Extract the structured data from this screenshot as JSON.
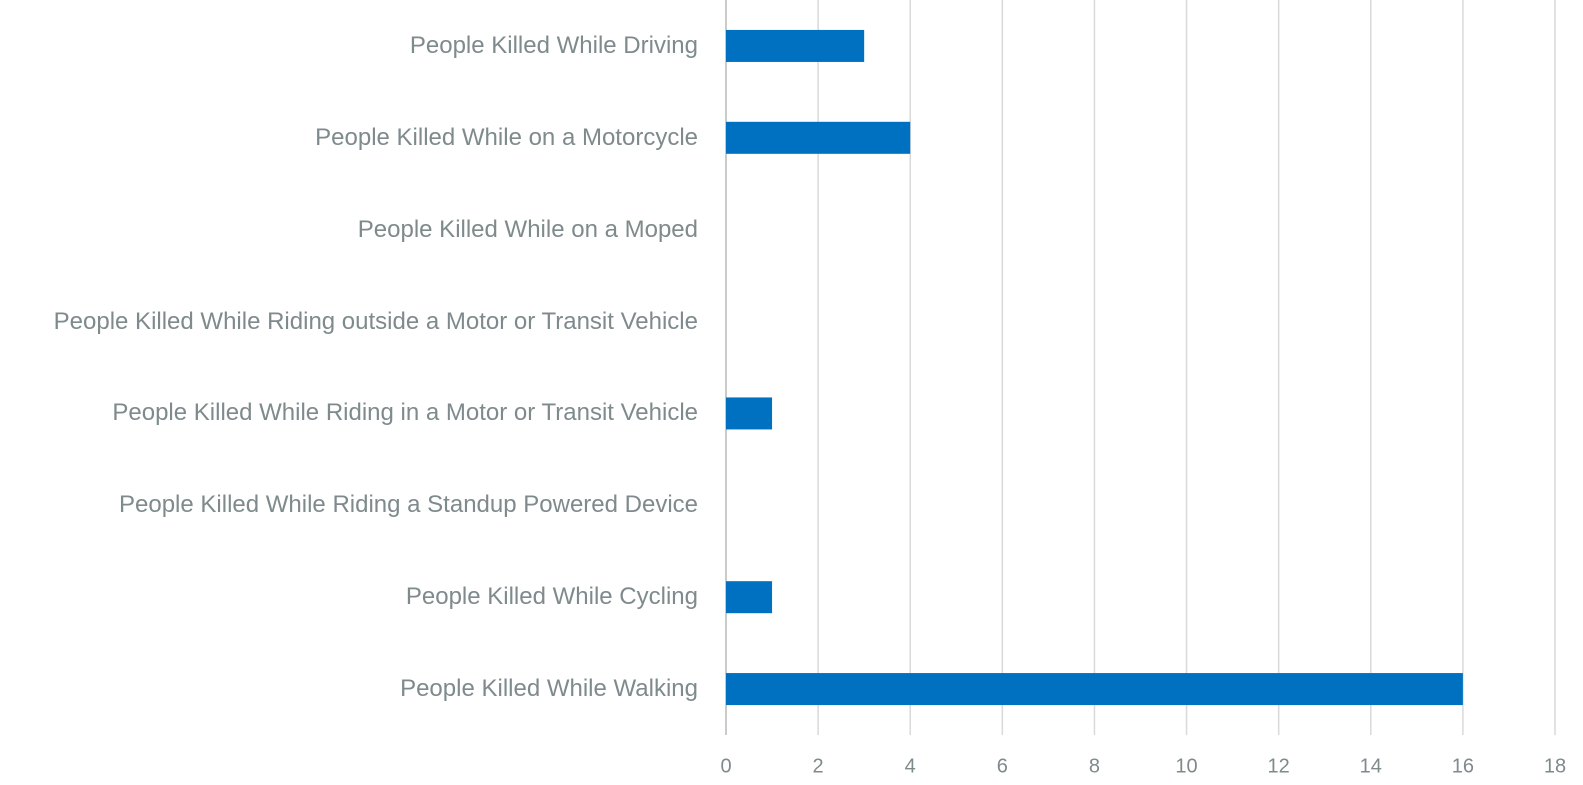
{
  "chart_data": {
    "type": "bar",
    "orientation": "horizontal",
    "categories": [
      "People Killed While Driving",
      "People Killed While on a Motorcycle",
      "People Killed While on a Moped",
      "People Killed While Riding outside a Motor or Transit Vehicle",
      "People Killed While Riding in a Motor or Transit Vehicle",
      "People Killed While Riding a Standup Powered Device",
      "People Killed While Cycling",
      "People Killed While Walking"
    ],
    "values": [
      3,
      4,
      0,
      0,
      1,
      0,
      1,
      16
    ],
    "color": "#0070c0",
    "xlim": [
      0,
      18
    ],
    "xticks": [
      0,
      2,
      4,
      6,
      8,
      10,
      12,
      14,
      16,
      18
    ],
    "grid": true
  }
}
